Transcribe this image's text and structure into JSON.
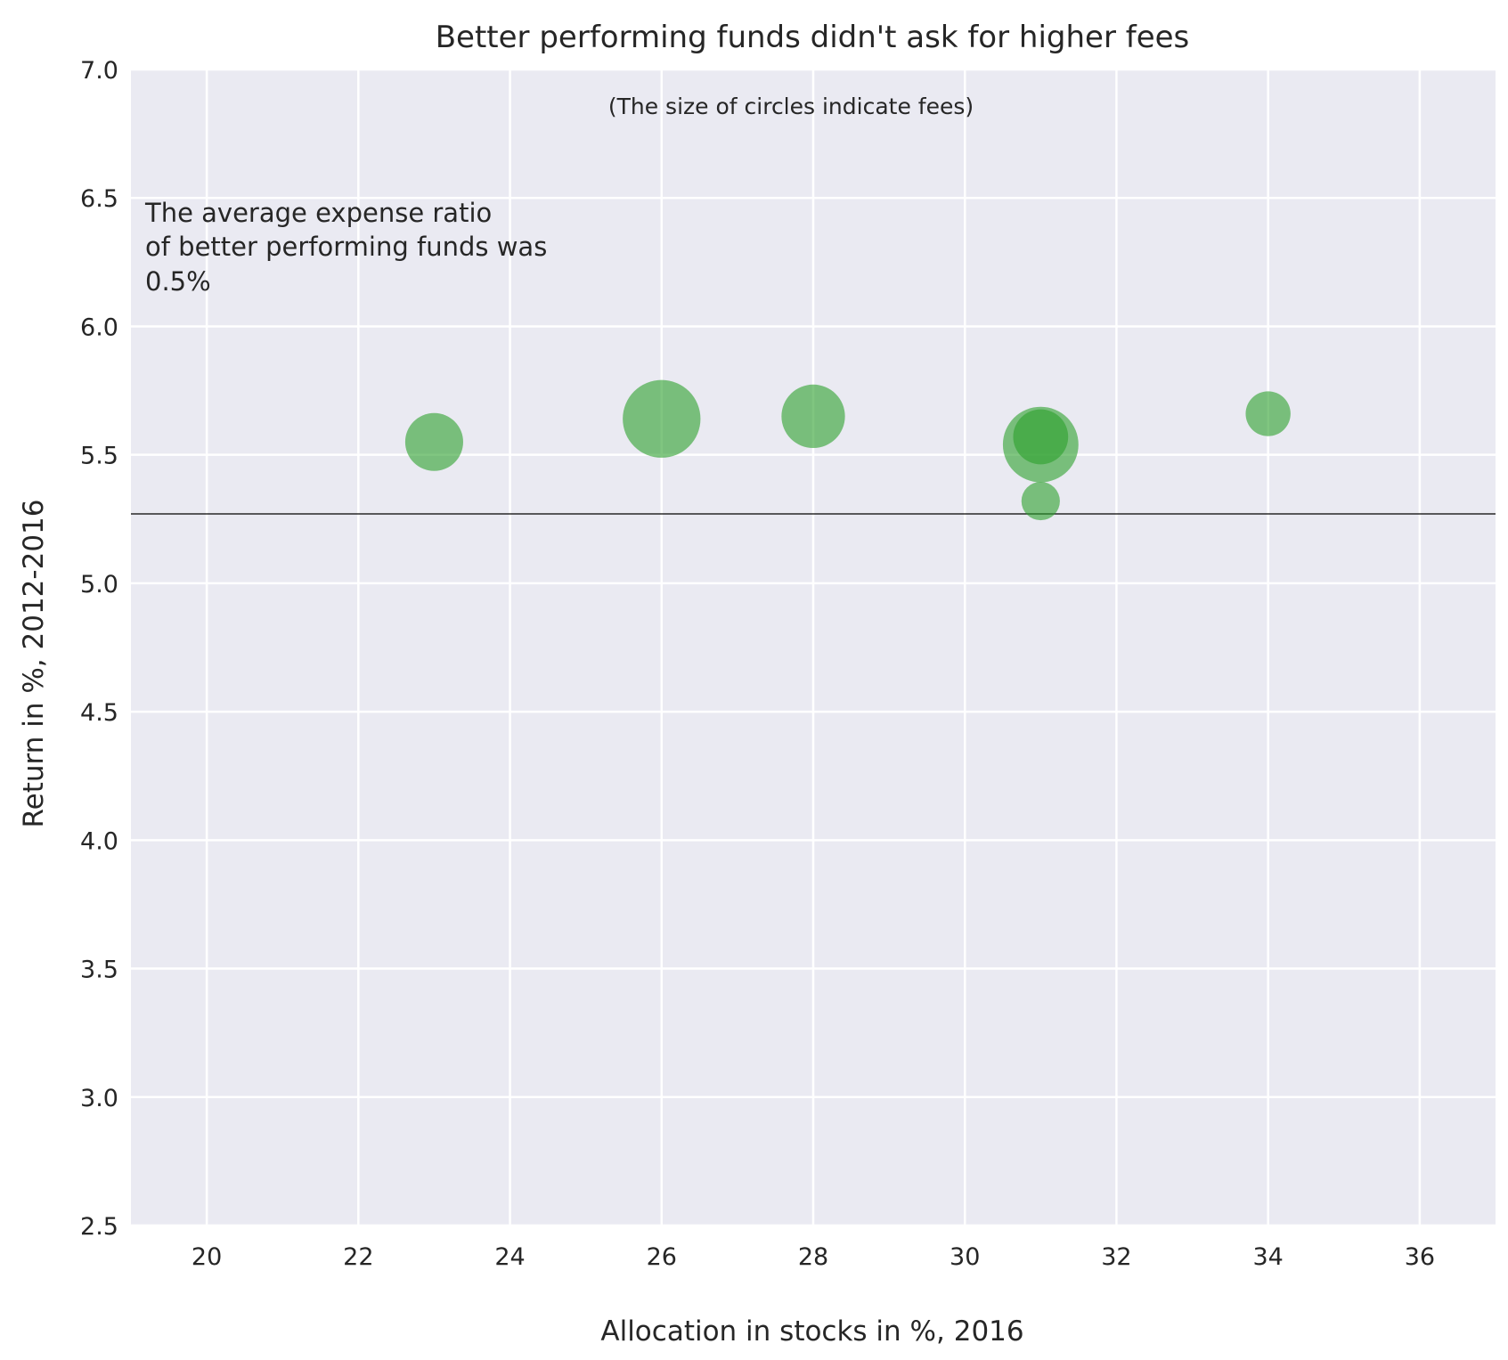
{
  "chart_data": {
    "type": "scatter",
    "title": "Better performing funds didn't ask for higher fees",
    "subtitle": "(The size of circles indicate fees)",
    "xlabel": "Allocation in stocks in %, 2016",
    "ylabel": "Return in %, 2012-2016",
    "xlim": [
      19,
      37
    ],
    "ylim": [
      2.5,
      7.0
    ],
    "xticks": [
      "20",
      "22",
      "24",
      "26",
      "28",
      "30",
      "32",
      "34",
      "36"
    ],
    "yticks": [
      "2.5",
      "3.0",
      "3.5",
      "4.0",
      "4.5",
      "5.0",
      "5.5",
      "6.0",
      "6.5",
      "7.0"
    ],
    "grid": true,
    "reference_line_y": 5.27,
    "annotation": [
      "The average expense ratio",
      "of better performing funds was",
      "0.5%"
    ],
    "marker_color": "#2ca02c",
    "background_color": "#eaeaf2",
    "points": [
      {
        "x": 23,
        "y": 5.55,
        "fee": 0.5
      },
      {
        "x": 26,
        "y": 5.64,
        "fee": 0.9
      },
      {
        "x": 28,
        "y": 5.65,
        "fee": 0.6
      },
      {
        "x": 31,
        "y": 5.54,
        "fee": 0.85
      },
      {
        "x": 31,
        "y": 5.57,
        "fee": 0.45
      },
      {
        "x": 31,
        "y": 5.32,
        "fee": 0.22
      },
      {
        "x": 34,
        "y": 5.66,
        "fee": 0.3
      }
    ]
  }
}
